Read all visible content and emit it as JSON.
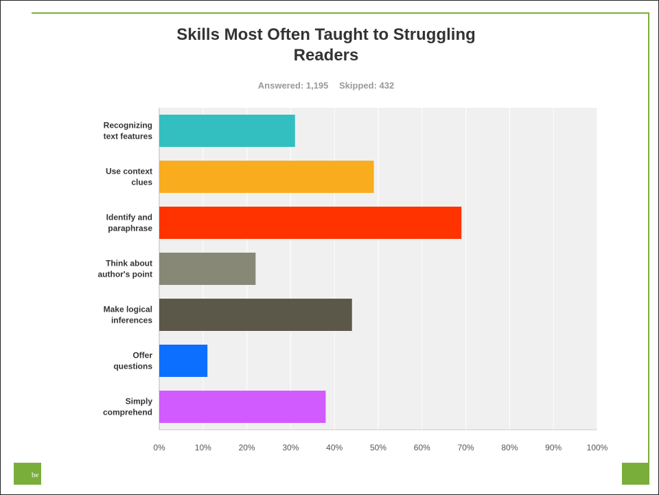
{
  "chart_data": {
    "type": "bar",
    "orientation": "horizontal",
    "title": "Skills Most Often Taught to Struggling Readers",
    "title_lines": [
      "Skills Most Often Taught to Struggling",
      "Readers"
    ],
    "answered": "Answered: 1,195",
    "skipped": "Skipped: 432",
    "categories": [
      [
        "Recognizing",
        "text features"
      ],
      [
        "Use context",
        "clues"
      ],
      [
        "Identify and",
        "paraphrase"
      ],
      [
        "Think about",
        "author's point"
      ],
      [
        "Make logical",
        "inferences"
      ],
      [
        "Offer",
        "questions"
      ],
      [
        "Simply",
        "comprehend"
      ]
    ],
    "values": [
      31,
      49,
      69,
      22,
      44,
      11,
      38
    ],
    "colors": [
      "#33bfbf",
      "#f9ac1e",
      "#ff3300",
      "#888877",
      "#5b5849",
      "#0d6fff",
      "#d15bff"
    ],
    "xlim": [
      0,
      100
    ],
    "ticks": [
      "0%",
      "10%",
      "20%",
      "30%",
      "40%",
      "50%",
      "60%",
      "70%",
      "80%",
      "90%",
      "100%"
    ],
    "grid": true
  },
  "footer": {
    "text": "be"
  },
  "colors": {
    "accent": "#7aae3a",
    "plot_background": "#f0f0f0"
  }
}
